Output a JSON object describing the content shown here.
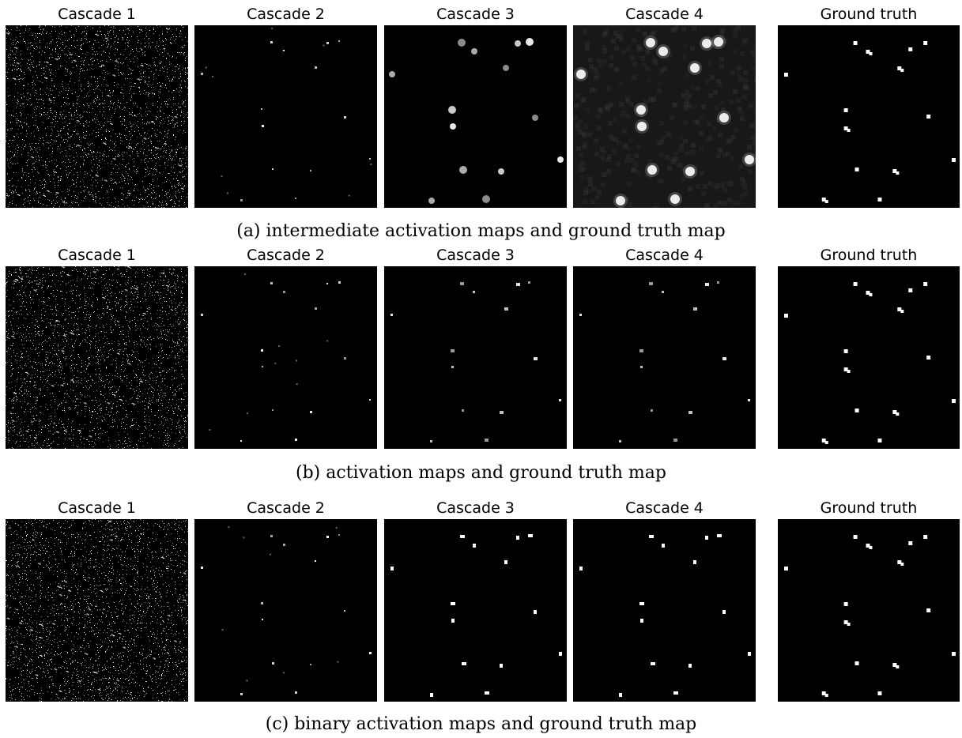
{
  "rows": [
    {
      "caption": "(a) intermediate activation maps and ground truth map",
      "panels": [
        {
          "title": "Cascade 1",
          "kind": "noise"
        },
        {
          "title": "Cascade 2",
          "kind": "dim"
        },
        {
          "title": "Cascade 3",
          "kind": "blobs"
        },
        {
          "title": "Cascade 4",
          "kind": "bigblobs"
        },
        {
          "title": "Ground truth",
          "kind": "truth"
        }
      ]
    },
    {
      "caption": "(b) activation maps and ground truth map",
      "panels": [
        {
          "title": "Cascade 1",
          "kind": "noise"
        },
        {
          "title": "Cascade 2",
          "kind": "dim"
        },
        {
          "title": "Cascade 3",
          "kind": "squares"
        },
        {
          "title": "Cascade 4",
          "kind": "squares"
        },
        {
          "title": "Ground truth",
          "kind": "truth"
        }
      ]
    },
    {
      "caption": "(c) binary activation maps and ground truth map",
      "panels": [
        {
          "title": "Cascade 1",
          "kind": "noise"
        },
        {
          "title": "Cascade 2",
          "kind": "dim"
        },
        {
          "title": "Cascade 3",
          "kind": "binary"
        },
        {
          "title": "Cascade 4",
          "kind": "binary"
        },
        {
          "title": "Ground truth",
          "kind": "truth"
        }
      ]
    }
  ]
}
